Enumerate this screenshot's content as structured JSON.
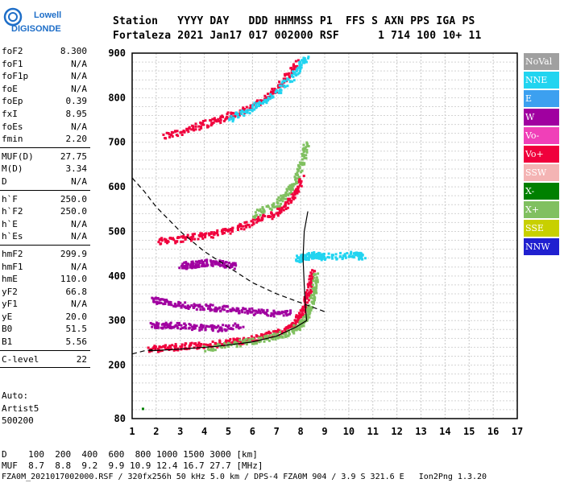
{
  "logo": {
    "line1": "Lowell",
    "line2": "DIGISONDE"
  },
  "header": {
    "row1": "Station   YYYY DAY   DDD HHMMSS P1  FFS S AXN PPS IGA PS",
    "row2": "Fortaleza 2021 Jan17 017 002000 RSF      1 714 100 10+ 11"
  },
  "params": {
    "group1": [
      {
        "label": "foF2",
        "value": "8.300"
      },
      {
        "label": "foF1",
        "value": "N/A"
      },
      {
        "label": "foF1p",
        "value": "N/A"
      },
      {
        "label": "foE",
        "value": "N/A"
      },
      {
        "label": "foEp",
        "value": "0.39"
      },
      {
        "label": "fxI",
        "value": "8.95"
      },
      {
        "label": "foEs",
        "value": "N/A"
      },
      {
        "label": "fmin",
        "value": "2.20"
      }
    ],
    "group2": [
      {
        "label": "MUF(D)",
        "value": "27.75"
      },
      {
        "label": "M(D)",
        "value": "3.34"
      },
      {
        "label": "D",
        "value": "N/A"
      }
    ],
    "group3": [
      {
        "label": "h`F",
        "value": "250.0"
      },
      {
        "label": "h`F2",
        "value": "250.0"
      },
      {
        "label": "h`E",
        "value": "N/A"
      },
      {
        "label": "h`Es",
        "value": "N/A"
      }
    ],
    "group4": [
      {
        "label": "hmF2",
        "value": "299.9"
      },
      {
        "label": "hmF1",
        "value": "N/A"
      },
      {
        "label": "hmE",
        "value": "110.0"
      },
      {
        "label": "yF2",
        "value": "66.8"
      },
      {
        "label": "yF1",
        "value": "N/A"
      },
      {
        "label": "yE",
        "value": "20.0"
      },
      {
        "label": "B0",
        "value": "51.5"
      },
      {
        "label": "B1",
        "value": "5.56"
      }
    ],
    "group5": [
      {
        "label": "C-level",
        "value": "22"
      }
    ]
  },
  "auto": {
    "line1": "Auto:",
    "line2": "Artist5",
    "line3": "500200"
  },
  "legend": [
    {
      "label": "NoVal",
      "color": "#a0a0a0"
    },
    {
      "label": "NNE",
      "color": "#22d4f0"
    },
    {
      "label": "E",
      "color": "#3ca0f0"
    },
    {
      "label": "W",
      "color": "#a000a0"
    },
    {
      "label": "Vo-",
      "color": "#f040b8"
    },
    {
      "label": "Vo+",
      "color": "#f0003c"
    },
    {
      "label": "SSW",
      "color": "#f4b4b4"
    },
    {
      "label": "X-",
      "color": "#008000"
    },
    {
      "label": "X+",
      "color": "#80c060"
    },
    {
      "label": "SSE",
      "color": "#c8d000"
    },
    {
      "label": "NNW",
      "color": "#2020d0"
    }
  ],
  "bottom": {
    "line1": "D    100  200  400  600  800 1000 1500 3000 [km]",
    "line2": "MUF  8.7  8.8  9.2  9.9 10.9 12.4 16.7 27.7 [MHz]"
  },
  "footer": "FZA0M_2021017002000.RSF / 320fx256h 50 kHz 5.0 km / DPS-4 FZA0M 904 / 3.9 S 321.6 E   Ion2Png 1.3.20",
  "chart_data": {
    "type": "scatter",
    "title": "",
    "xlabel": "",
    "ylabel": "",
    "xlim": [
      1,
      17
    ],
    "ylim": [
      80,
      900
    ],
    "x_ticks": [
      1,
      2,
      3,
      4,
      5,
      6,
      7,
      8,
      9,
      10,
      11,
      12,
      13,
      14,
      15,
      16,
      17
    ],
    "y_ticks": [
      80,
      200,
      300,
      400,
      500,
      600,
      700,
      800,
      900
    ],
    "grid": true,
    "series": [
      {
        "name": "Vo+",
        "color": "#f0003c",
        "trace": [
          [
            1.7,
            238
          ],
          [
            2.5,
            242
          ],
          [
            3.5,
            245
          ],
          [
            4.5,
            250
          ],
          [
            5.5,
            257
          ],
          [
            6.5,
            267
          ],
          [
            7.3,
            280
          ],
          [
            7.8,
            300
          ],
          [
            8.1,
            330
          ],
          [
            8.3,
            370
          ],
          [
            8.45,
            410
          ]
        ]
      },
      {
        "name": "X+",
        "color": "#80c060",
        "trace": [
          [
            4.0,
            240
          ],
          [
            5.5,
            252
          ],
          [
            6.5,
            262
          ],
          [
            7.5,
            275
          ],
          [
            8.0,
            295
          ],
          [
            8.3,
            320
          ],
          [
            8.5,
            360
          ],
          [
            8.6,
            410
          ]
        ]
      },
      {
        "name": "Vo+",
        "color": "#f0003c",
        "trace": [
          [
            2.1,
            480
          ],
          [
            3.0,
            485
          ],
          [
            4.0,
            493
          ],
          [
            5.0,
            505
          ],
          [
            6.0,
            522
          ],
          [
            7.0,
            545
          ],
          [
            7.6,
            575
          ],
          [
            8.0,
            620
          ]
        ]
      },
      {
        "name": "X+",
        "color": "#80c060",
        "trace": [
          [
            6.0,
            540
          ],
          [
            7.0,
            565
          ],
          [
            7.6,
            600
          ],
          [
            8.0,
            650
          ],
          [
            8.2,
            700
          ]
        ]
      },
      {
        "name": "Vo+",
        "color": "#f0003c",
        "trace": [
          [
            2.3,
            715
          ],
          [
            3.5,
            735
          ],
          [
            4.5,
            752
          ],
          [
            5.5,
            772
          ],
          [
            6.5,
            800
          ],
          [
            7.2,
            835
          ],
          [
            7.8,
            880
          ]
        ]
      },
      {
        "name": "NNE",
        "color": "#22d4f0",
        "trace": [
          [
            5.0,
            755
          ],
          [
            6.0,
            780
          ],
          [
            7.0,
            815
          ],
          [
            7.8,
            860
          ],
          [
            8.2,
            895
          ]
        ]
      },
      {
        "name": "W",
        "color": "#a000a0",
        "trace": [
          [
            1.8,
            350
          ],
          [
            2.5,
            340
          ],
          [
            3.5,
            335
          ],
          [
            4.5,
            330
          ],
          [
            5.5,
            325
          ],
          [
            6.5,
            320
          ],
          [
            7.5,
            318
          ]
        ]
      },
      {
        "name": "W",
        "color": "#a000a0",
        "trace": [
          [
            1.8,
            290
          ],
          [
            2.5,
            292
          ],
          [
            3.5,
            288
          ],
          [
            4.5,
            285
          ],
          [
            5.5,
            290
          ]
        ]
      },
      {
        "name": "W",
        "color": "#a000a0",
        "trace": [
          [
            3.0,
            425
          ],
          [
            3.5,
            428
          ],
          [
            4.0,
            432
          ],
          [
            4.6,
            430
          ],
          [
            5.2,
            425
          ]
        ]
      },
      {
        "name": "NNE",
        "color": "#22d4f0",
        "trace": [
          [
            7.8,
            440
          ],
          [
            8.2,
            445
          ],
          [
            8.6,
            450
          ],
          [
            8.9,
            445
          ],
          [
            10.2,
            450
          ],
          [
            10.6,
            445
          ]
        ]
      },
      {
        "name": "X-",
        "color": "#008000",
        "trace": [
          [
            1.5,
            110
          ]
        ]
      }
    ],
    "profile": [
      [
        1.7,
        232
      ],
      [
        3.0,
        236
      ],
      [
        4.5,
        242
      ],
      [
        6.0,
        252
      ],
      [
        7.0,
        265
      ],
      [
        7.8,
        285
      ],
      [
        8.25,
        300
      ],
      [
        8.2,
        330
      ],
      [
        8.15,
        380
      ],
      [
        8.1,
        440
      ],
      [
        8.15,
        500
      ],
      [
        8.3,
        545
      ]
    ],
    "dashed_curve": [
      [
        1.0,
        620
      ],
      [
        1.5,
        590
      ],
      [
        2.0,
        555
      ],
      [
        3.0,
        500
      ],
      [
        4.0,
        455
      ],
      [
        5.0,
        420
      ],
      [
        6.0,
        385
      ],
      [
        7.0,
        360
      ],
      [
        8.0,
        340
      ],
      [
        9.0,
        320
      ]
    ],
    "dashed_low": [
      [
        1.0,
        225
      ],
      [
        1.5,
        232
      ],
      [
        2.0,
        236
      ]
    ]
  }
}
